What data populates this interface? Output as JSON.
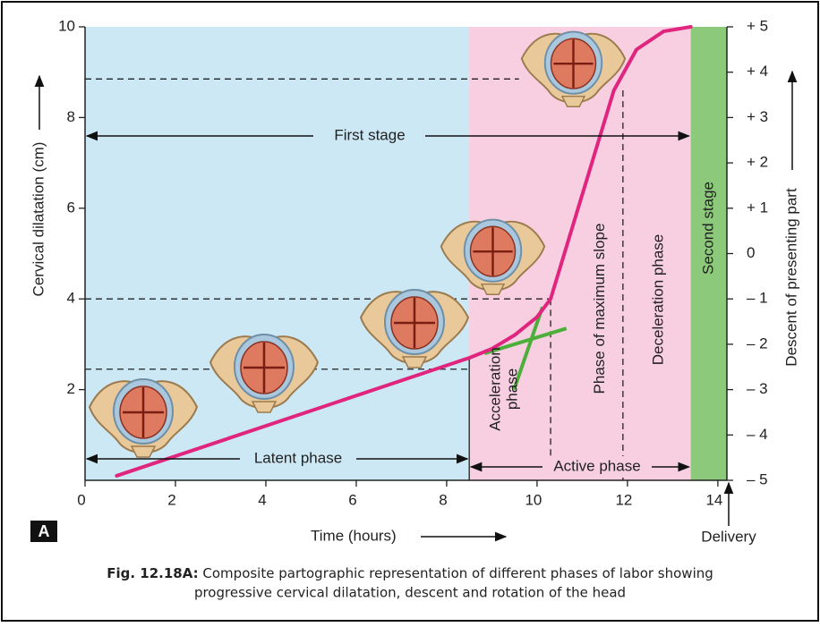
{
  "chart_data": {
    "type": "line",
    "xlabel": "Time (hours)",
    "ylabel": "Cervical dilatation (cm)",
    "y2label": "Descent of presenting part",
    "panel": "A",
    "x": [
      0.7,
      8.5,
      9.0,
      9.5,
      10.0,
      10.3,
      11.7,
      12.2,
      12.8,
      13.4
    ],
    "series": [
      {
        "color": "#e0257f",
        "values": [
          0.1,
          2.7,
          2.9,
          3.2,
          3.6,
          4.0,
          8.6,
          9.5,
          9.9,
          10
        ]
      }
    ],
    "xlim": [
      0,
      14.2
    ],
    "ylim": [
      0,
      10
    ],
    "y2lim": [
      -5,
      5
    ],
    "xticks": [
      0,
      2,
      4,
      6,
      8,
      10,
      12,
      14
    ],
    "yticks": [
      2,
      4,
      6,
      8,
      10
    ],
    "y2ticks": [
      {
        "value": 5,
        "label": "+ 5"
      },
      {
        "value": 4,
        "label": "+ 4"
      },
      {
        "value": 3,
        "label": "+ 3"
      },
      {
        "value": 2,
        "label": "+ 2"
      },
      {
        "value": 1,
        "label": "+ 1"
      },
      0,
      {
        "value": -1,
        "label": "– 1"
      },
      {
        "value": -2,
        "label": "– 2"
      },
      {
        "value": -3,
        "label": "– 3"
      },
      {
        "value": -4,
        "label": "– 4"
      },
      {
        "value": -5,
        "label": "– 5"
      }
    ],
    "regions": [
      {
        "from": 0,
        "to": 8.5,
        "color": "#cde8f5"
      },
      {
        "from": 8.5,
        "to": 13.4,
        "color": "#f7cfe0"
      },
      {
        "from": 13.4,
        "to": 14.2,
        "color": "#8cc97a"
      }
    ],
    "guides": [
      {
        "y": 8.85,
        "x_end": 9.6
      },
      {
        "y": 4.0,
        "x_end": 10.3
      },
      {
        "y": 2.45,
        "x_end": 8.5
      }
    ],
    "verticals": [
      {
        "x": 10.3,
        "y_top": 4.0,
        "style": "dashed"
      },
      {
        "x": 11.9,
        "y_top": 8.6,
        "style": "dashed"
      },
      {
        "x": 8.5,
        "y_top": 2.7,
        "style": "solid"
      }
    ],
    "tangents": [
      {
        "x": [
          8.84,
          10.65
        ],
        "y": [
          2.8,
          3.35
        ]
      },
      {
        "x": [
          9.49,
          10.12
        ],
        "y": [
          2.0,
          3.82
        ]
      }
    ],
    "annotations": [
      "First stage",
      "Latent phase",
      "Active phase",
      "Acceleration phase",
      "Phase of maximum slope",
      "Deceleration phase",
      "Second stage",
      "Delivery"
    ],
    "caption": {
      "label": "Fig. 12.18A:",
      "line1": "Composite partographic representation of different phases of labor showing",
      "line2": "progressive cervical dilatation, descent and rotation of the head"
    }
  }
}
